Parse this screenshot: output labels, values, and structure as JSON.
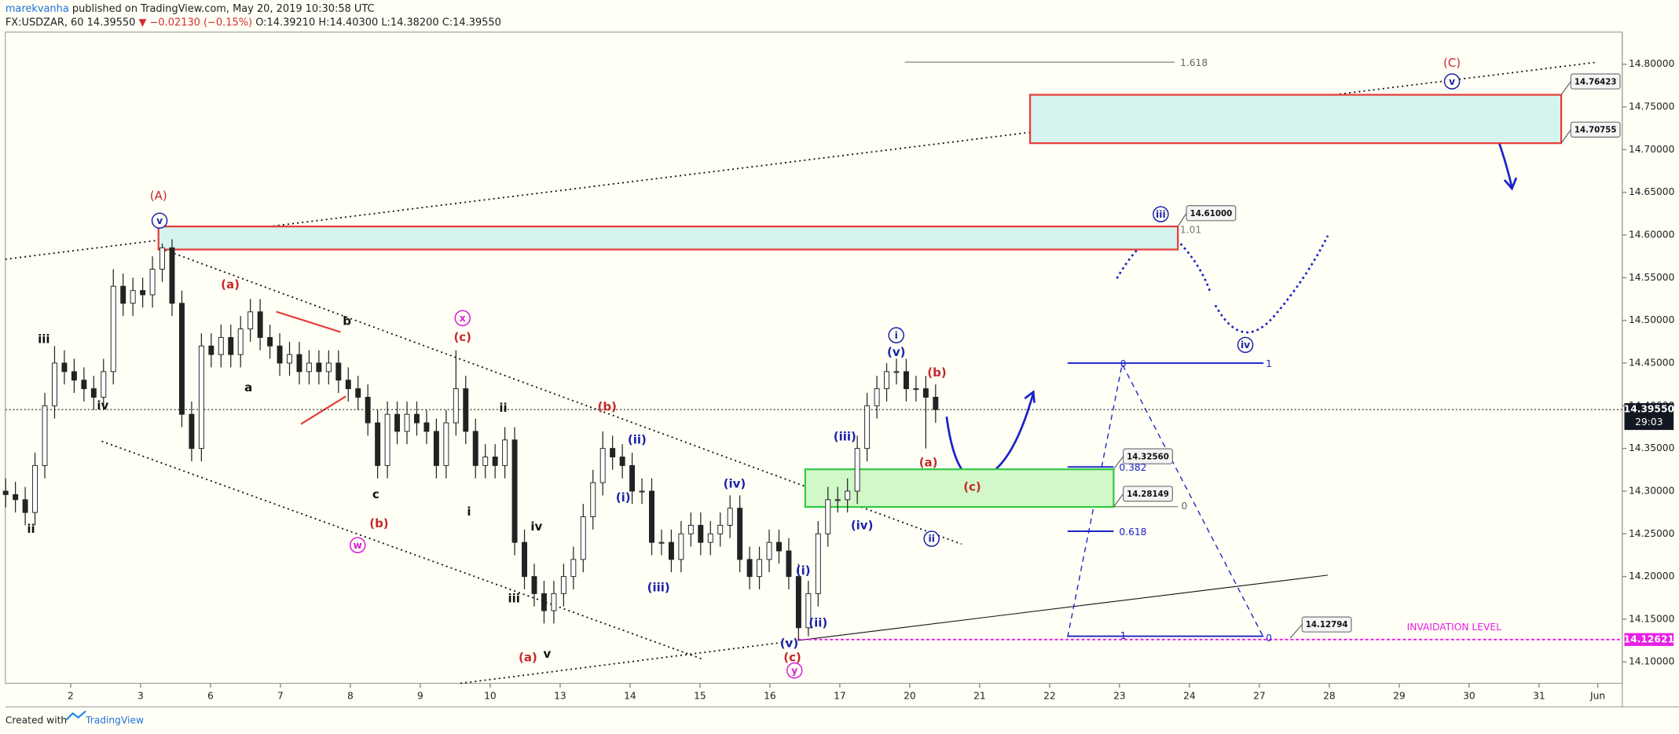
{
  "header": {
    "author": "marekvanha",
    "published": "published on TradingView.com, May 20, 2019 10:30:58 UTC",
    "symbol": "FX:USDZAR, 60",
    "last": "14.39550",
    "change": "▼ −0.02130 (−0.15%)",
    "open": "O:14.39210",
    "high": "H:14.40300",
    "low": "L:14.38200",
    "close": "C:14.39550"
  },
  "footer": {
    "text": "Created with",
    "brand": "TradingView"
  },
  "chart_data": {
    "type": "candlestick",
    "xlim": [
      0.0659,
      23.19
    ],
    "ylim": [
      14.0749,
      14.8376
    ],
    "xticks": [
      {
        "value": 1,
        "label": "2"
      },
      {
        "value": 2,
        "label": "3"
      },
      {
        "value": 3,
        "label": "6"
      },
      {
        "value": 4,
        "label": "7"
      },
      {
        "value": 5,
        "label": "8"
      },
      {
        "value": 6,
        "label": "9"
      },
      {
        "value": 7,
        "label": "10"
      },
      {
        "value": 8,
        "label": "13"
      },
      {
        "value": 9,
        "label": "14"
      },
      {
        "value": 10,
        "label": "15"
      },
      {
        "value": 11,
        "label": "16"
      },
      {
        "value": 12,
        "label": "17"
      },
      {
        "value": 13,
        "label": "20"
      },
      {
        "value": 14,
        "label": "21"
      },
      {
        "value": 15,
        "label": "22"
      },
      {
        "value": 16,
        "label": "23"
      },
      {
        "value": 17,
        "label": "24"
      },
      {
        "value": 18,
        "label": "27"
      },
      {
        "value": 19,
        "label": "28"
      },
      {
        "value": 20,
        "label": "29"
      },
      {
        "value": 21,
        "label": "30"
      },
      {
        "value": 22,
        "label": "31"
      },
      {
        "value": 22.84,
        "label": "Jun"
      }
    ],
    "yticks": [
      {
        "value": 14.1,
        "label": "14.10000"
      },
      {
        "value": 14.15,
        "label": "14.15000"
      },
      {
        "value": 14.2,
        "label": "14.20000"
      },
      {
        "value": 14.25,
        "label": "14.25000"
      },
      {
        "value": 14.3,
        "label": "14.30000"
      },
      {
        "value": 14.35,
        "label": "14.35000"
      },
      {
        "value": 14.4,
        "label": "14.40000"
      },
      {
        "value": 14.45,
        "label": "14.45000"
      },
      {
        "value": 14.5,
        "label": "14.50000"
      },
      {
        "value": 14.55,
        "label": "14.55000"
      },
      {
        "value": 14.6,
        "label": "14.60000"
      },
      {
        "value": 14.65,
        "label": "14.65000"
      },
      {
        "value": 14.7,
        "label": "14.70000"
      },
      {
        "value": 14.75,
        "label": "14.75000"
      },
      {
        "value": 14.8,
        "label": "14.80000"
      }
    ],
    "color": "#222222",
    "x": [
      0.07,
      0.21,
      0.35,
      0.49,
      0.63,
      0.77,
      0.91,
      1.05,
      1.19,
      1.33,
      1.47,
      1.61,
      1.75,
      1.89,
      2.03,
      2.17,
      2.31,
      2.45,
      2.59,
      2.73,
      2.87,
      3.01,
      3.15,
      3.29,
      3.43,
      3.57,
      3.71,
      3.85,
      3.99,
      4.13,
      4.27,
      4.41,
      4.55,
      4.69,
      4.83,
      4.97,
      5.11,
      5.25,
      5.39,
      5.53,
      5.67,
      5.81,
      5.95,
      6.09,
      6.23,
      6.37,
      6.51,
      6.65,
      6.79,
      6.93,
      7.07,
      7.21,
      7.35,
      7.49,
      7.63,
      7.77,
      7.91,
      8.05,
      8.19,
      8.33,
      8.47,
      8.61,
      8.75,
      8.89,
      9.03,
      9.17,
      9.31,
      9.45,
      9.59,
      9.73,
      9.87,
      10.01,
      10.15,
      10.29,
      10.43,
      10.57,
      10.71,
      10.85,
      10.99,
      11.13,
      11.27,
      11.41,
      11.55,
      11.69,
      11.83,
      11.97,
      12.11,
      12.25,
      12.39,
      12.53,
      12.67,
      12.81,
      12.95,
      13.09,
      13.23,
      13.37
    ],
    "open": [
      14.3,
      14.296,
      14.29,
      14.275,
      14.33,
      14.4,
      14.45,
      14.44,
      14.43,
      14.42,
      14.41,
      14.44,
      14.54,
      14.52,
      14.535,
      14.53,
      14.56,
      14.585,
      14.52,
      14.39,
      14.35,
      14.47,
      14.46,
      14.48,
      14.46,
      14.49,
      14.51,
      14.48,
      14.47,
      14.45,
      14.46,
      14.44,
      14.45,
      14.44,
      14.45,
      14.43,
      14.42,
      14.41,
      14.38,
      14.33,
      14.39,
      14.37,
      14.39,
      14.38,
      14.37,
      14.33,
      14.38,
      14.42,
      14.37,
      14.33,
      14.34,
      14.33,
      14.36,
      14.24,
      14.2,
      14.18,
      14.16,
      14.18,
      14.2,
      14.22,
      14.27,
      14.31,
      14.35,
      14.34,
      14.33,
      14.3,
      14.3,
      14.24,
      14.24,
      14.22,
      14.25,
      14.26,
      14.24,
      14.25,
      14.26,
      14.28,
      14.22,
      14.2,
      14.22,
      14.24,
      14.23,
      14.2,
      14.14,
      14.18,
      14.25,
      14.29,
      14.29,
      14.3,
      14.35,
      14.4,
      14.42,
      14.44,
      14.44,
      14.42,
      14.42,
      14.41
    ],
    "high": [
      14.315,
      14.311,
      14.305,
      14.345,
      14.415,
      14.47,
      14.465,
      14.455,
      14.445,
      14.435,
      14.455,
      14.56,
      14.555,
      14.55,
      14.55,
      14.575,
      14.59,
      14.595,
      14.535,
      14.405,
      14.485,
      14.485,
      14.495,
      14.495,
      14.505,
      14.525,
      14.525,
      14.495,
      14.485,
      14.475,
      14.475,
      14.465,
      14.465,
      14.465,
      14.465,
      14.445,
      14.435,
      14.425,
      14.395,
      14.405,
      14.405,
      14.405,
      14.405,
      14.395,
      14.385,
      14.395,
      14.465,
      14.435,
      14.385,
      14.355,
      14.355,
      14.375,
      14.375,
      14.255,
      14.215,
      14.195,
      14.195,
      14.215,
      14.235,
      14.285,
      14.325,
      14.37,
      14.365,
      14.355,
      14.345,
      14.315,
      14.315,
      14.255,
      14.255,
      14.265,
      14.275,
      14.275,
      14.265,
      14.275,
      14.295,
      14.295,
      14.235,
      14.235,
      14.255,
      14.255,
      14.245,
      14.215,
      14.195,
      14.265,
      14.305,
      14.305,
      14.315,
      14.365,
      14.415,
      14.435,
      14.45,
      14.455,
      14.455,
      14.435,
      14.435,
      14.425
    ],
    "low": [
      14.281,
      14.275,
      14.26,
      14.26,
      14.315,
      14.385,
      14.425,
      14.415,
      14.405,
      14.395,
      14.395,
      14.425,
      14.505,
      14.505,
      14.515,
      14.515,
      14.545,
      14.505,
      14.375,
      14.335,
      14.335,
      14.445,
      14.445,
      14.445,
      14.445,
      14.475,
      14.465,
      14.455,
      14.435,
      14.435,
      14.425,
      14.425,
      14.425,
      14.425,
      14.415,
      14.405,
      14.395,
      14.365,
      14.315,
      14.315,
      14.355,
      14.355,
      14.365,
      14.355,
      14.315,
      14.315,
      14.365,
      14.355,
      14.315,
      14.315,
      14.315,
      14.315,
      14.225,
      14.185,
      14.165,
      14.145,
      14.145,
      14.165,
      14.185,
      14.205,
      14.255,
      14.295,
      14.325,
      14.315,
      14.285,
      14.285,
      14.225,
      14.225,
      14.205,
      14.205,
      14.235,
      14.225,
      14.225,
      14.235,
      14.245,
      14.205,
      14.185,
      14.185,
      14.205,
      14.215,
      14.185,
      14.126,
      14.13,
      14.165,
      14.235,
      14.275,
      14.275,
      14.285,
      14.335,
      14.385,
      14.405,
      14.425,
      14.405,
      14.405,
      14.35,
      14.38
    ],
    "close": [
      14.296,
      14.29,
      14.275,
      14.33,
      14.4,
      14.45,
      14.44,
      14.43,
      14.42,
      14.41,
      14.44,
      14.54,
      14.52,
      14.535,
      14.53,
      14.56,
      14.585,
      14.52,
      14.39,
      14.35,
      14.47,
      14.46,
      14.48,
      14.46,
      14.49,
      14.51,
      14.48,
      14.47,
      14.45,
      14.46,
      14.44,
      14.45,
      14.44,
      14.45,
      14.43,
      14.42,
      14.41,
      14.38,
      14.33,
      14.39,
      14.37,
      14.39,
      14.38,
      14.37,
      14.33,
      14.38,
      14.42,
      14.37,
      14.33,
      14.34,
      14.33,
      14.36,
      14.24,
      14.2,
      14.18,
      14.16,
      14.18,
      14.2,
      14.22,
      14.27,
      14.31,
      14.35,
      14.34,
      14.33,
      14.3,
      14.3,
      14.24,
      14.24,
      14.22,
      14.25,
      14.26,
      14.24,
      14.25,
      14.26,
      14.28,
      14.22,
      14.2,
      14.22,
      14.24,
      14.23,
      14.2,
      14.14,
      14.18,
      14.25,
      14.29,
      14.29,
      14.3,
      14.35,
      14.4,
      14.42,
      14.44,
      14.44,
      14.42,
      14.42,
      14.41,
      14.3955
    ],
    "current_price": {
      "value": 14.3955,
      "label": "14.39550"
    },
    "countdown": "29:03",
    "invalidation_price": 14.12621,
    "invalidation_text": "INVAIDATION LEVEL",
    "zones": [
      {
        "low": 14.70755,
        "high": 14.76423,
        "fill": "#d5f4ef",
        "border": "#e53935"
      },
      {
        "low": 14.583,
        "high": 14.61,
        "fill": "#d5f4ef",
        "border": "#e53935"
      },
      {
        "low": 14.28149,
        "high": 14.3256,
        "fill": "#d2f7c8",
        "border": "#2ecc40"
      }
    ],
    "price_tags": [
      14.76423,
      14.70755,
      {
        "value": 14.61,
        "label": "14.61000"
      },
      {
        "value": 14.3256,
        "label": "14.32560"
      },
      14.28149,
      14.12794
    ],
    "fib_labels": [
      1.618,
      1.01,
      0,
      0.382,
      0.618,
      1,
      0,
      1,
      0
    ],
    "wave_labels": [
      {
        "text": "(A)",
        "color": "#c62828"
      },
      {
        "text": "(C)",
        "color": "#c62828"
      },
      {
        "text": "(a)",
        "color": "#c62828"
      },
      {
        "text": "(b)",
        "color": "#c62828"
      },
      {
        "text": "(c)",
        "color": "#c62828"
      },
      {
        "text": "(b)",
        "color": "#c62828"
      },
      {
        "text": "(a)",
        "color": "#c62828"
      },
      {
        "text": "(c)",
        "color": "#c62828"
      },
      {
        "text": "(b)",
        "color": "#c62828"
      },
      {
        "text": "(a)",
        "color": "#c62828"
      },
      {
        "text": "(c)",
        "color": "#c62828"
      },
      {
        "text": "iii",
        "color": "#111111"
      },
      {
        "text": "iv",
        "color": "#111111"
      },
      {
        "text": "ii",
        "color": "#111111"
      },
      {
        "text": "a",
        "color": "#111111"
      },
      {
        "text": "b",
        "color": "#111111"
      },
      {
        "text": "c",
        "color": "#111111"
      },
      {
        "text": "ii",
        "color": "#111111"
      },
      {
        "text": "i",
        "color": "#111111"
      },
      {
        "text": "iv",
        "color": "#111111"
      },
      {
        "text": "iii",
        "color": "#111111"
      },
      {
        "text": "v",
        "color": "#111111"
      },
      {
        "text": "(ii)",
        "color": "#1a23a8"
      },
      {
        "text": "(i)",
        "color": "#1a23a8"
      },
      {
        "text": "(iii)",
        "color": "#1a23a8"
      },
      {
        "text": "(iv)",
        "color": "#1a23a8"
      },
      {
        "text": "(v)",
        "color": "#1a23a8"
      },
      {
        "text": "(i)",
        "color": "#1a23a8"
      },
      {
        "text": "(ii)",
        "color": "#1a23a8"
      },
      {
        "text": "(iii)",
        "color": "#1a23a8"
      },
      {
        "text": "(iv)",
        "color": "#1a23a8"
      },
      {
        "text": "(v)",
        "color": "#1a23a8"
      }
    ],
    "circled_labels": [
      {
        "text": "v",
        "color": "#1a23a8"
      },
      {
        "text": "x",
        "color": "#d61fd6"
      },
      {
        "text": "w",
        "color": "#d61fd6"
      },
      {
        "text": "y",
        "color": "#d61fd6"
      },
      {
        "text": "i",
        "color": "#1a23a8"
      },
      {
        "text": "ii",
        "color": "#1a23a8"
      },
      {
        "text": "iii",
        "color": "#1a23a8"
      },
      {
        "text": "iv",
        "color": "#1a23a8"
      },
      {
        "text": "v",
        "color": "#1a23a8"
      }
    ]
  }
}
